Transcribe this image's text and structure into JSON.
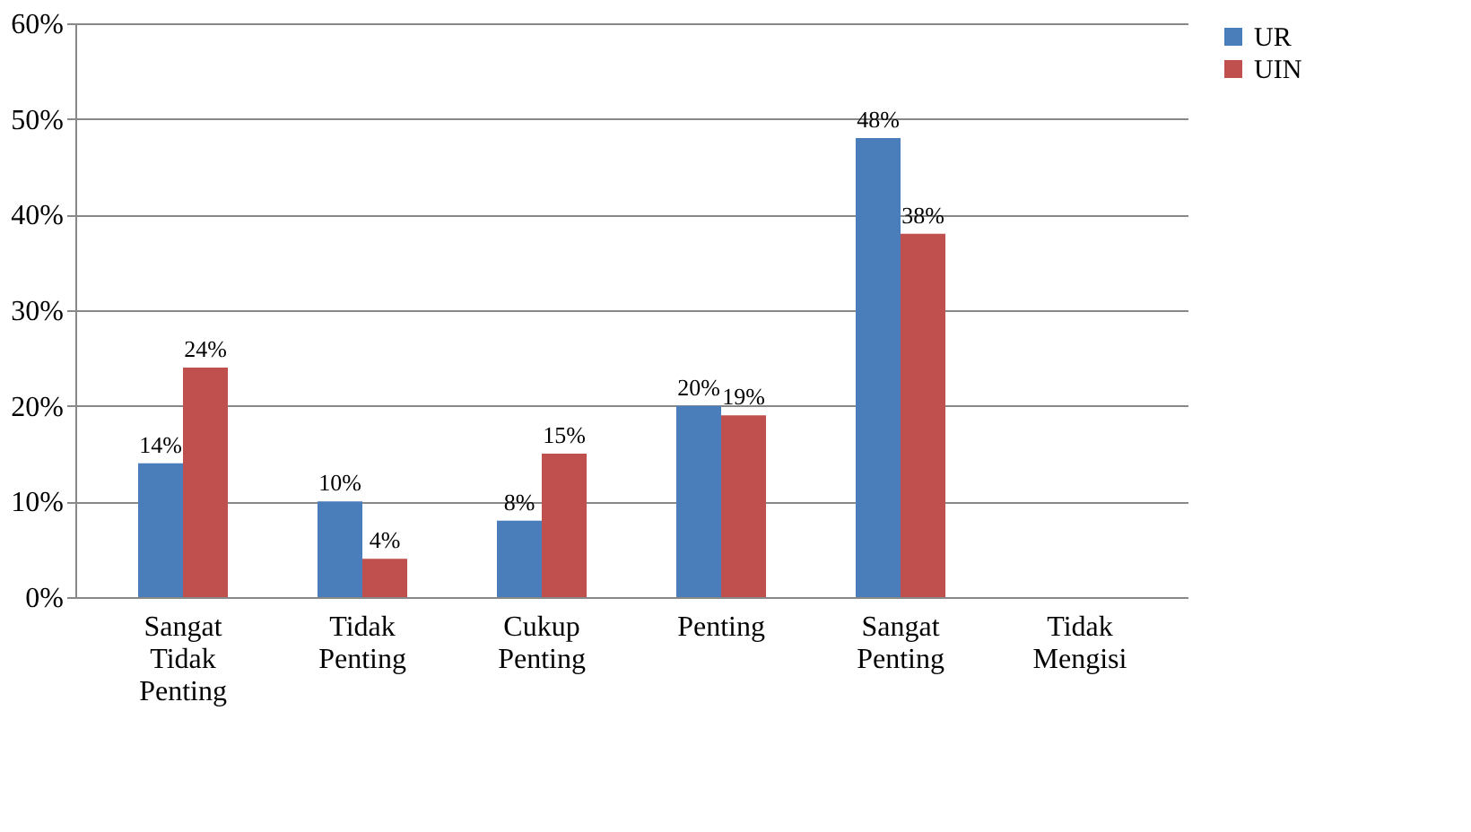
{
  "chart_data": {
    "type": "bar",
    "categories": [
      "Sangat Tidak Penting",
      "Tidak Penting",
      "Cukup Penting",
      "Penting",
      "Sangat Penting",
      "Tidak Mengisi"
    ],
    "series": [
      {
        "name": "UR",
        "color": "#4a7ebb",
        "values": [
          14,
          10,
          8,
          20,
          48,
          null
        ],
        "value_labels": [
          "14%",
          "10%",
          "8%",
          "20%",
          "48%",
          null
        ]
      },
      {
        "name": "UIN",
        "color": "#c0504d",
        "values": [
          24,
          4,
          15,
          19,
          38,
          null
        ],
        "value_labels": [
          "24%",
          "4%",
          "15%",
          "19%",
          "38%",
          null
        ]
      }
    ],
    "ylim": [
      0,
      60
    ],
    "yticks": [
      {
        "value": 0,
        "label": "0%"
      },
      {
        "value": 10,
        "label": "10%"
      },
      {
        "value": 20,
        "label": "20%"
      },
      {
        "value": 30,
        "label": "30%"
      },
      {
        "value": 40,
        "label": "40%"
      },
      {
        "value": 50,
        "label": "50%"
      },
      {
        "value": 60,
        "label": "60%"
      }
    ],
    "grid": "y",
    "legend": "right"
  }
}
